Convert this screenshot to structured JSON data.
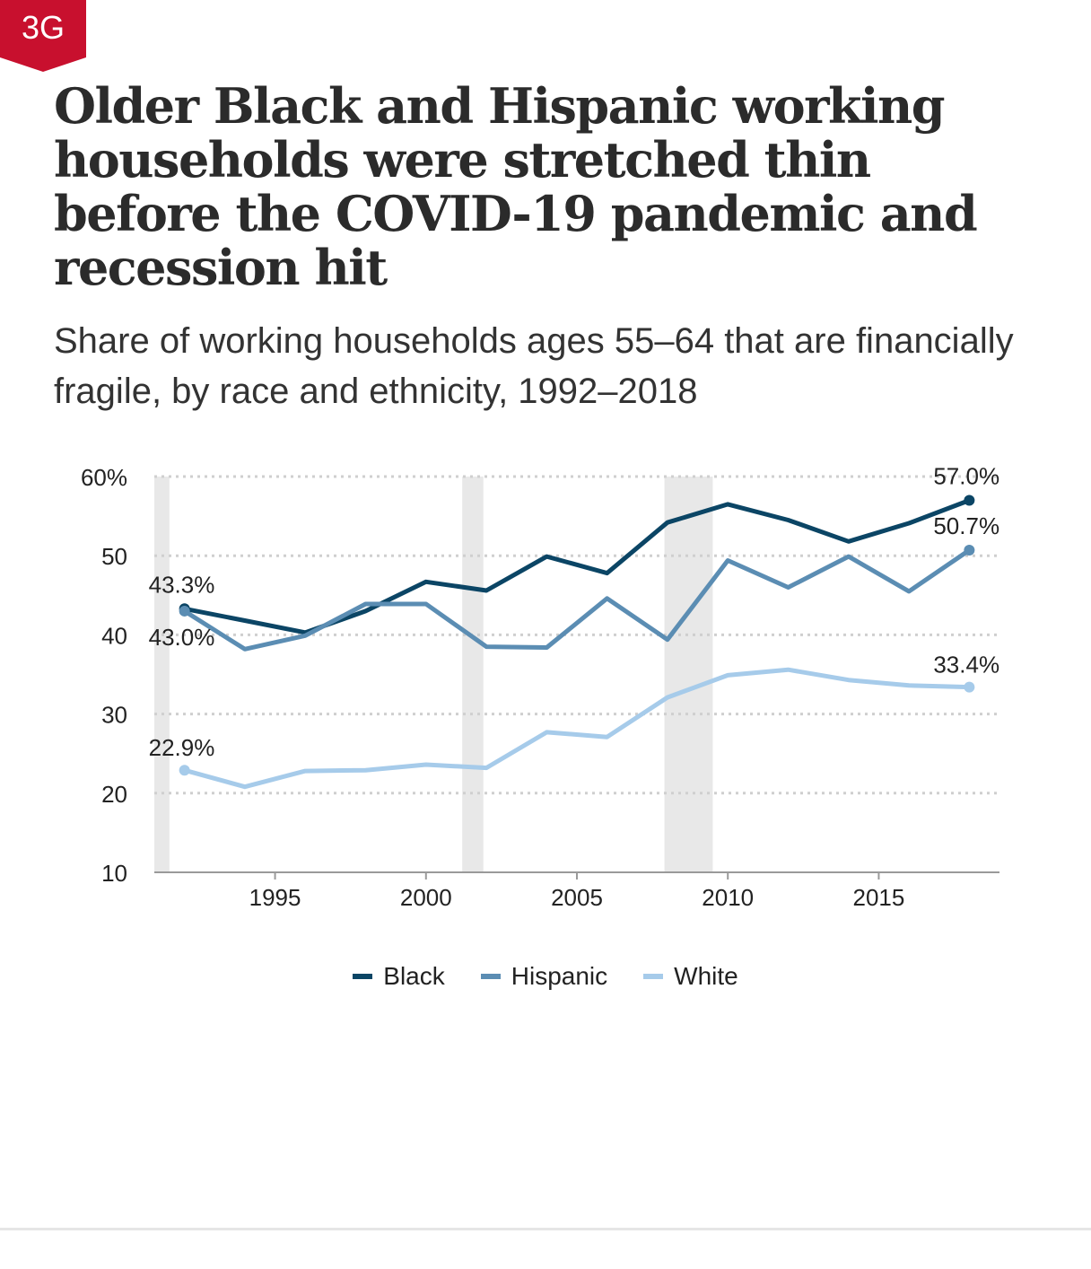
{
  "badge": {
    "label": "3G",
    "color": "#c8102e"
  },
  "title": "Older Black and Hispanic working households were stretched thin before the COVID-19 pandemic and recession hit",
  "subtitle": "Share of working households ages 55–64 that are financially fragile, by race and ethnicity, 1992–2018",
  "chart_data": {
    "type": "line",
    "title": "Older Black and Hispanic working households were stretched thin before the COVID-19 pandemic and recession hit",
    "subtitle": "Share of working households ages 55–64 that are financially fragile, by race and ethnicity, 1992–2018",
    "x": [
      1992,
      1994,
      1996,
      1998,
      2000,
      2002,
      2004,
      2006,
      2008,
      2010,
      2012,
      2014,
      2016,
      2018
    ],
    "xlim": [
      1991,
      2019
    ],
    "xticks": [
      1995,
      2000,
      2005,
      2010,
      2015
    ],
    "xtick_labels": [
      "1995",
      "2000",
      "2005",
      "2010",
      "2015"
    ],
    "ylim": [
      10,
      60
    ],
    "yticks": [
      10,
      20,
      30,
      40,
      50,
      60
    ],
    "ytick_labels": [
      "10",
      "20",
      "30",
      "40",
      "50",
      "60%"
    ],
    "grid": "horizontal dotted",
    "legend": "bottom-center",
    "recession_shading": [
      [
        1991,
        1991.5
      ],
      [
        2001.2,
        2001.9
      ],
      [
        2007.9,
        2009.5
      ]
    ],
    "series": [
      {
        "name": "Black",
        "color": "#0b4565",
        "values": [
          43.3,
          41.8,
          40.3,
          43.0,
          46.7,
          45.6,
          49.9,
          47.8,
          54.2,
          56.5,
          54.5,
          51.8,
          54.1,
          57.0
        ],
        "start_label": "43.3%",
        "end_label": "57.0%"
      },
      {
        "name": "Hispanic",
        "color": "#5b8db3",
        "values": [
          43.0,
          38.2,
          39.9,
          43.9,
          43.9,
          38.5,
          38.4,
          44.6,
          39.4,
          49.4,
          46.0,
          49.9,
          45.5,
          50.7
        ],
        "start_label": "43.0%",
        "end_label": "50.7%"
      },
      {
        "name": "White",
        "color": "#a6cbea",
        "values": [
          22.9,
          20.8,
          22.8,
          22.9,
          23.6,
          23.2,
          27.7,
          27.1,
          32.1,
          34.9,
          35.6,
          34.3,
          33.6,
          33.4
        ],
        "start_label": "22.9%",
        "end_label": "33.4%"
      }
    ]
  }
}
